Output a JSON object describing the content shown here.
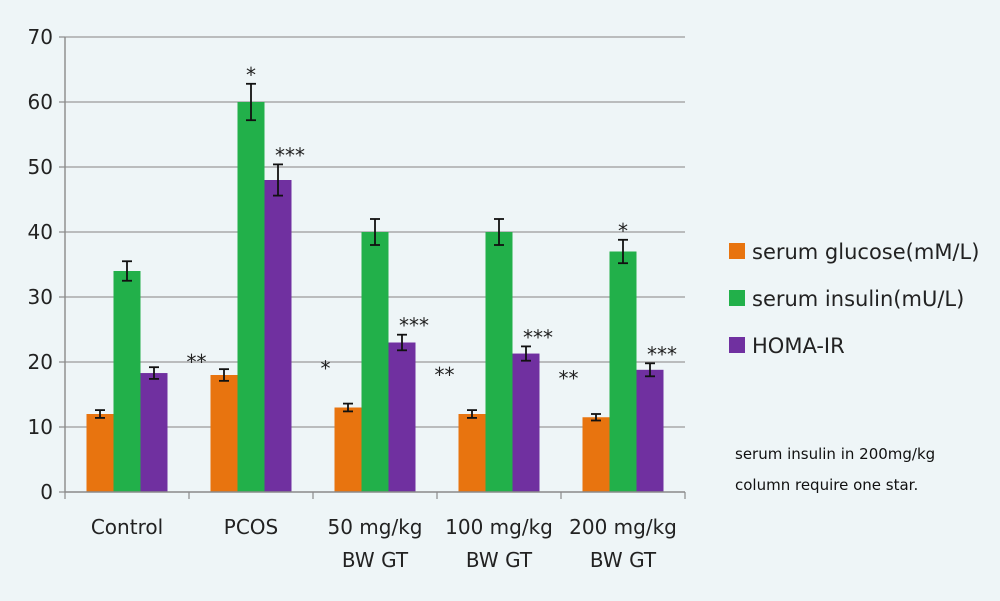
{
  "chart_data": {
    "type": "bar",
    "categories": [
      [
        "Control"
      ],
      [
        "PCOS"
      ],
      [
        "50 mg/kg",
        "BW GT"
      ],
      [
        "100 mg/kg",
        "BW GT"
      ],
      [
        "200 mg/kg",
        "BW GT"
      ]
    ],
    "series": [
      {
        "name": "serum glucose(mM/L)",
        "color": "#e8740f",
        "values": [
          12,
          18,
          13,
          12,
          11.5
        ],
        "errors": [
          0.6,
          0.9,
          0.6,
          0.6,
          0.5
        ]
      },
      {
        "name": "serum insulin(mU/L)",
        "color": "#22b04a",
        "values": [
          34,
          60,
          40,
          40,
          37
        ],
        "errors": [
          1.5,
          2.8,
          2.0,
          2.0,
          1.8
        ]
      },
      {
        "name": "HOMA-IR",
        "color": "#7030a0",
        "values": [
          18.3,
          48,
          23,
          21.3,
          18.8
        ],
        "errors": [
          0.9,
          2.4,
          1.2,
          1.1,
          1.0
        ]
      }
    ],
    "ylim": [
      0,
      70
    ],
    "yticks": [
      0,
      10,
      20,
      30,
      40,
      50,
      60,
      70
    ],
    "grid": true,
    "legend_position": "right",
    "annotations": [
      {
        "text": "*",
        "category": 1,
        "series": 1
      },
      {
        "text": "***",
        "category": 1,
        "series": 2
      },
      {
        "text": "**",
        "category": 1,
        "series": 0
      },
      {
        "text": "*",
        "category": 2,
        "series": 0
      },
      {
        "text": "***",
        "category": 2,
        "series": 2
      },
      {
        "text": "**",
        "category": 3,
        "series": 0
      },
      {
        "text": "***",
        "category": 3,
        "series": 2
      },
      {
        "text": "**",
        "category": 4,
        "series": 0
      },
      {
        "text": "*",
        "category": 4,
        "series": 1
      },
      {
        "text": "***",
        "category": 4,
        "series": 2
      }
    ],
    "note_lines": [
      "serum insulin in 200mg/kg",
      "column require one star."
    ]
  }
}
